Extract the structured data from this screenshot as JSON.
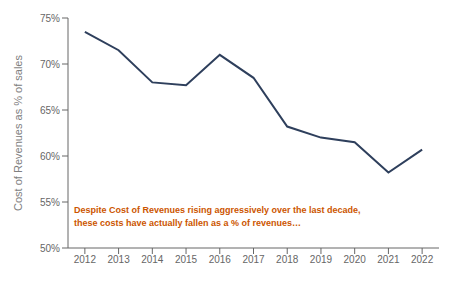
{
  "chart_data": {
    "type": "line",
    "x": [
      2012,
      2013,
      2014,
      2015,
      2016,
      2017,
      2018,
      2019,
      2020,
      2021,
      2022
    ],
    "values": [
      73.5,
      71.5,
      68.0,
      67.7,
      71.0,
      68.5,
      63.2,
      62.0,
      61.5,
      58.2,
      60.7
    ],
    "color": "#2e3f5c",
    "xlim": [
      2011.5,
      2022.5
    ],
    "xticks": [
      2012,
      2013,
      2014,
      2015,
      2016,
      2017,
      2018,
      2019,
      2020,
      2021,
      2022
    ],
    "ylim": [
      50,
      75
    ],
    "yticks": [
      {
        "value": 50,
        "label": "50%"
      },
      {
        "value": 55,
        "label": "55%"
      },
      {
        "value": 60,
        "label": "60%"
      },
      {
        "value": 65,
        "label": "65%"
      },
      {
        "value": 70,
        "label": "70%"
      },
      {
        "value": 75,
        "label": "75%"
      }
    ],
    "ylabel": "Cost of Revenues as % of sales",
    "grid": false,
    "annotations": [
      {
        "text": "Despite Cost of Revenues rising aggressively over the last decade,",
        "color": "#cc5500"
      },
      {
        "text": "these costs have actually fallen as a % of revenues…",
        "color": "#cc5500"
      }
    ]
  }
}
